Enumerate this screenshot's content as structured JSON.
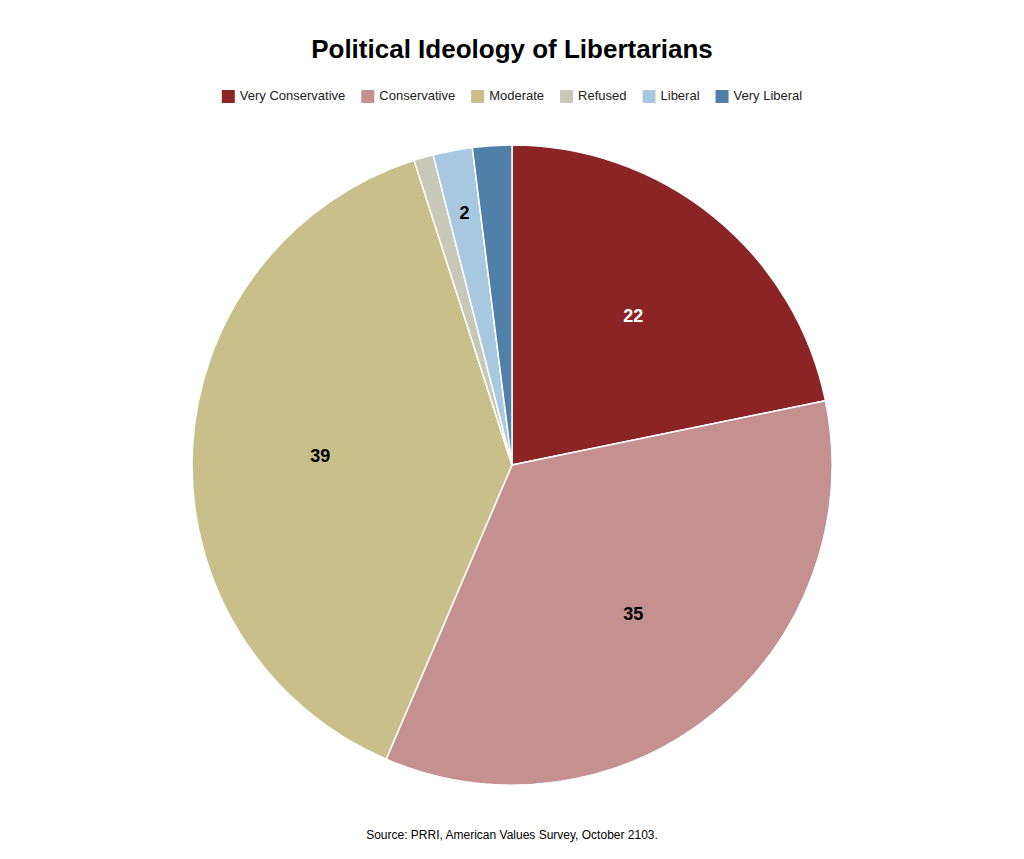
{
  "chart_data": {
    "type": "pie",
    "title": "Political Ideology of Libertarians",
    "categories": [
      "Very Conservative",
      "Conservative",
      "Moderate",
      "Refused",
      "Liberal",
      "Very Liberal"
    ],
    "values": [
      22,
      35,
      39,
      1,
      2,
      2
    ],
    "colors": [
      "#8B2525",
      "#C49090",
      "#C8BF8A",
      "#C8C8B8",
      "#A8C8E0",
      "#5080A8"
    ],
    "data_labels": true,
    "value_labels": [
      "22",
      "35",
      "39",
      null,
      "2",
      null
    ],
    "legend": "top",
    "annotations": [
      "Source: PRRI, American Values Survey, October 2103."
    ]
  }
}
